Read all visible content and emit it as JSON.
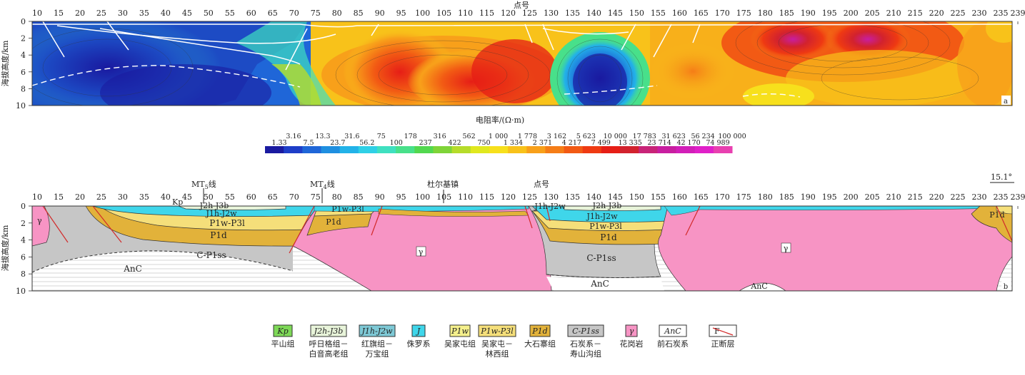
{
  "panel_a": {
    "top_title": "点号",
    "y_title": "海拔高度/km",
    "x_ticks": [
      "10",
      "15",
      "20",
      "25",
      "30",
      "35",
      "40",
      "45",
      "50",
      "55",
      "60",
      "65",
      "70",
      "75",
      "80",
      "85",
      "90",
      "95",
      "100",
      "105",
      "110",
      "115",
      "120",
      "125",
      "130",
      "135",
      "140",
      "145",
      "150",
      "155",
      "160",
      "165",
      "170",
      "175",
      "180",
      "185",
      "190",
      "195",
      "200",
      "205",
      "210",
      "215",
      "220",
      "225",
      "230",
      "235",
      "239"
    ],
    "y_ticks": [
      "0",
      "2",
      "4",
      "6",
      "8",
      "10"
    ],
    "panel_label": "a"
  },
  "colorbar": {
    "unit": "电阻率/(Ω·m)",
    "top_labels": [
      "3.16",
      "13.3",
      "31.6",
      "75",
      "178",
      "316",
      "562",
      "1 000",
      "1 778",
      "3 162",
      "5 623",
      "10 000",
      "17 783",
      "31 623",
      "56 234",
      "100 000"
    ],
    "bottom_labels": [
      "1.33",
      "7.5",
      "23.7",
      "56.2",
      "100",
      "237",
      "422",
      "750",
      "1 334",
      "2 371",
      "4 217",
      "7 499",
      "13 335",
      "23 714",
      "42 170",
      "74 989"
    ],
    "colors": [
      "#1a1aa0",
      "#1e3ec8",
      "#1f66d8",
      "#1f8fe0",
      "#22b2e8",
      "#2fd0e6",
      "#3fe0c0",
      "#48e08a",
      "#52d84f",
      "#7fd438",
      "#b6dc2a",
      "#e0e81e",
      "#f7e01c",
      "#f8c21a",
      "#f8a01a",
      "#f57d17",
      "#f25a14",
      "#ef3a12",
      "#e61e16",
      "#d2222e",
      "#c82478",
      "#c81ea0",
      "#d21eb8",
      "#e020c8",
      "#e840b0"
    ]
  },
  "panel_b": {
    "lines": [
      {
        "name": "MT5线",
        "label": "MT5线"
      },
      {
        "name": "MT4线",
        "label": "MT4线"
      }
    ],
    "town": "杜尔基镇",
    "top_title": "点号",
    "angle": "15.1°",
    "y_title": "海拔高度/km",
    "x_ticks": [
      "10",
      "15",
      "20",
      "25",
      "30",
      "35",
      "40",
      "45",
      "50",
      "55",
      "60",
      "65",
      "70",
      "75",
      "80",
      "85",
      "90",
      "95",
      "100",
      "105",
      "110",
      "115",
      "120",
      "125",
      "130",
      "135",
      "140",
      "145",
      "150",
      "155",
      "160",
      "165",
      "170",
      "175",
      "180",
      "185",
      "190",
      "195",
      "200",
      "205",
      "210",
      "215",
      "220",
      "225",
      "230",
      "235",
      "239"
    ],
    "y_ticks": [
      "0",
      "2",
      "4",
      "6",
      "8",
      "10"
    ],
    "panel_label": "b",
    "units": {
      "kp": "Kp",
      "j2h_j3b": "J2h-J3b",
      "j1h_j2w": "J1h-J2w",
      "j": "J",
      "p1w_p3l": "P1w-P3l",
      "p1d": "P1d",
      "c_p1ss": "C-P1ss",
      "gamma": "γ",
      "anc": "AnC"
    }
  },
  "legend": [
    {
      "code": "Kp",
      "name1": "平山组",
      "name2": "",
      "color": "#7ed957",
      "border": "#333"
    },
    {
      "code": "J2h-J3b",
      "name1": "呼日格组－",
      "name2": "白音高老组",
      "color": "#e8f4da",
      "border": "#333"
    },
    {
      "code": "J1h-J2w",
      "name1": "红旗组－",
      "name2": "万宝组",
      "color": "#7ec9d6",
      "border": "#333"
    },
    {
      "code": "J",
      "name1": "侏罗系",
      "name2": "",
      "color": "#3fd6ea",
      "border": "#333"
    },
    {
      "code": "P1w",
      "name1": "吴家屯组",
      "name2": "",
      "color": "#f5f08c",
      "border": "#333"
    },
    {
      "code": "P1w-P3l",
      "name1": "吴家屯－",
      "name2": "林西组",
      "color": "#f5df7a",
      "border": "#333"
    },
    {
      "code": "P1d",
      "name1": "大石寨组",
      "name2": "",
      "color": "#e2b23a",
      "border": "#333"
    },
    {
      "code": "C-P1ss",
      "name1": "石炭系－",
      "name2": "寿山沟组",
      "color": "#c6c6c6",
      "border": "#333"
    },
    {
      "code": "γ",
      "name1": "花岗岩",
      "name2": "",
      "color": "#f794c4",
      "border": "#333"
    },
    {
      "code": "AnC",
      "name1": "前石炭系",
      "name2": "",
      "color": "#ffffff",
      "border": "#333"
    },
    {
      "code": "F",
      "name1": "正断层",
      "name2": "",
      "color": "#ffffff",
      "border": "#333"
    }
  ]
}
